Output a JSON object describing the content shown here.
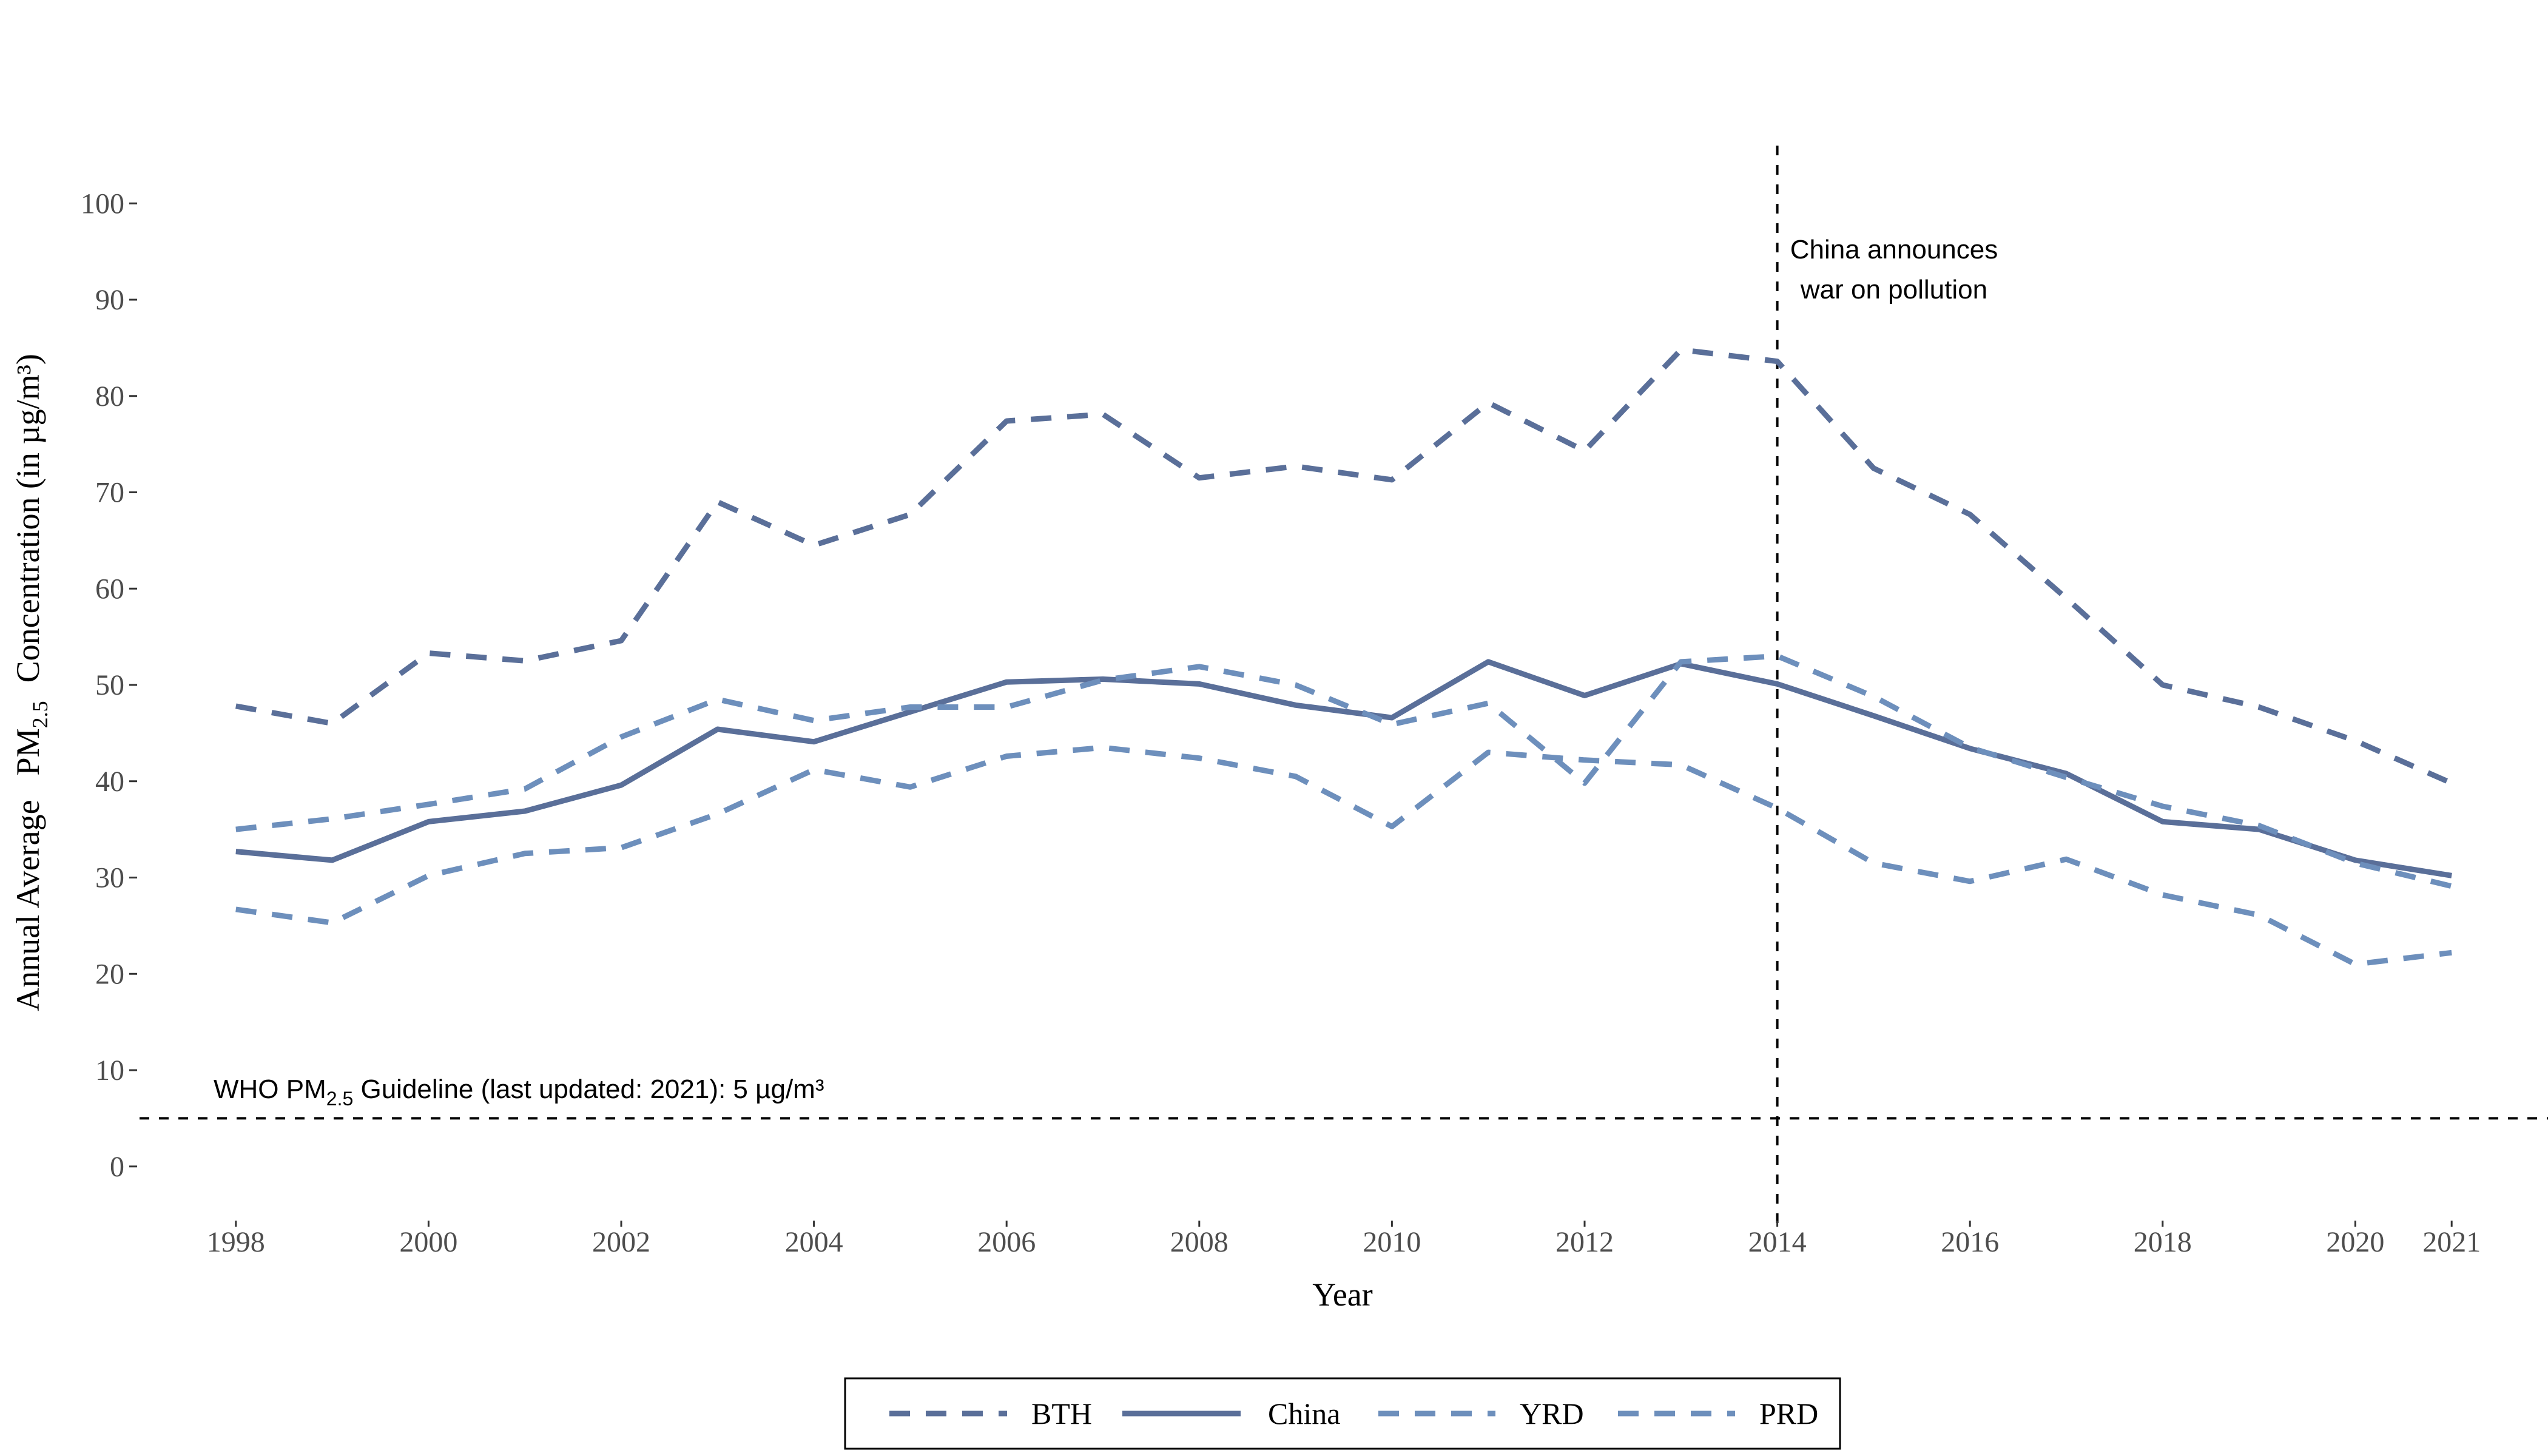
{
  "chart_data": {
    "type": "line",
    "xlabel": "Year",
    "ylabel": {
      "prefix": "Annual Average",
      "pm_main": "PM",
      "pm_sub": "2.5",
      "suffix": "Concentration (in µg/m³)"
    },
    "xlim": [
      1997,
      2022
    ],
    "ylim": [
      -6,
      106
    ],
    "x_ticks": [
      1998,
      2000,
      2002,
      2004,
      2006,
      2008,
      2010,
      2012,
      2014,
      2016,
      2018,
      2020,
      2021
    ],
    "y_ticks": [
      0,
      10,
      20,
      30,
      40,
      50,
      60,
      70,
      80,
      90,
      100
    ],
    "grid": false,
    "legend_position": "bottom",
    "x": [
      1998,
      1999,
      2000,
      2001,
      2002,
      2003,
      2004,
      2005,
      2006,
      2007,
      2008,
      2009,
      2010,
      2011,
      2012,
      2013,
      2014,
      2015,
      2016,
      2017,
      2018,
      2019,
      2020,
      2021
    ],
    "series": [
      {
        "name": "BTH",
        "color": "#5a6f99",
        "dash": "dashed",
        "values": [
          47.8,
          46.0,
          53.3,
          52.5,
          54.6,
          69.0,
          64.5,
          67.7,
          77.4,
          78.1,
          71.5,
          72.7,
          71.3,
          79.3,
          74.3,
          84.8,
          83.6,
          72.5,
          67.7,
          59.0,
          50.0,
          47.7,
          44.2,
          39.8
        ]
      },
      {
        "name": "China",
        "color": "#5a6f99",
        "dash": "solid",
        "values": [
          32.7,
          31.8,
          35.8,
          36.9,
          39.6,
          45.4,
          44.1,
          47.2,
          50.3,
          50.6,
          50.1,
          47.9,
          46.6,
          52.4,
          48.9,
          52.2,
          50.1,
          46.8,
          43.4,
          40.8,
          35.8,
          35.0,
          31.8,
          30.2
        ]
      },
      {
        "name": "YRD",
        "color": "#6d8fbc",
        "dash": "dashed",
        "values": [
          35.0,
          36.1,
          37.6,
          39.2,
          44.6,
          48.5,
          46.3,
          47.7,
          47.7,
          50.5,
          51.9,
          50.0,
          45.9,
          48.1,
          39.8,
          52.4,
          53.0,
          48.8,
          43.5,
          40.4,
          37.4,
          35.4,
          31.5,
          29.1
        ]
      },
      {
        "name": "PRD",
        "color": "#6d8fbc",
        "dash": "dashed",
        "values": [
          26.7,
          25.3,
          30.2,
          32.5,
          33.1,
          36.6,
          41.2,
          39.4,
          42.6,
          43.5,
          42.4,
          40.5,
          35.3,
          43.0,
          42.2,
          41.7,
          37.2,
          31.5,
          29.6,
          31.9,
          28.2,
          26.1,
          21.0,
          22.2
        ]
      }
    ],
    "reference_lines": {
      "who_guideline_y": 5,
      "policy_year_x": 2014
    },
    "annotations": {
      "who_guideline": {
        "prefix": "WHO PM",
        "sub": "2.5",
        "suffix": " Guideline (last updated: 2021): 5 µg/m³"
      },
      "policy_line1": "China announces",
      "policy_line2": "war on pollution"
    }
  }
}
